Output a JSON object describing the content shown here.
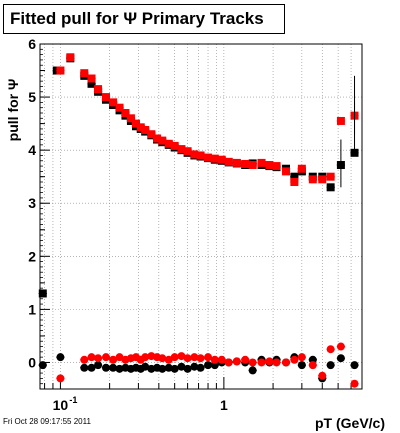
{
  "header": {
    "title": "Fitted pull for Ψ  Primary Tracks",
    "footer": "Fri Oct 28 09:17:55 2011"
  },
  "chart_data": {
    "type": "scatter",
    "title": "Fitted pull for Ψ  Primary Tracks",
    "xlabel": "pT (GeV/c)",
    "ylabel": "pull for Ψ",
    "xscale": "log",
    "xlim": [
      0.075,
      7.0
    ],
    "ylim": [
      -0.5,
      6.0
    ],
    "grid": true,
    "y_ticks": [
      0,
      1,
      2,
      3,
      4,
      5,
      6
    ],
    "x_tick_labels": [
      {
        "x": 0.1,
        "label": "10",
        "sup": "-1"
      },
      {
        "x": 1,
        "label": "1",
        "sup": ""
      }
    ],
    "colors": {
      "black_series": "#000000",
      "red_series": "#ff0000",
      "frame": "#000000",
      "grid": "#888888"
    },
    "series": [
      {
        "color": "#000000",
        "role": "width",
        "points": [
          {
            "x": 0.078,
            "y": 1.3
          },
          {
            "x": 0.095,
            "y": 5.5
          },
          {
            "x": 0.115,
            "y": 5.73
          },
          {
            "x": 0.14,
            "y": 5.4
          },
          {
            "x": 0.155,
            "y": 5.25
          },
          {
            "x": 0.17,
            "y": 5.1
          },
          {
            "x": 0.19,
            "y": 4.95
          },
          {
            "x": 0.21,
            "y": 4.85
          },
          {
            "x": 0.23,
            "y": 4.75
          },
          {
            "x": 0.25,
            "y": 4.65
          },
          {
            "x": 0.27,
            "y": 4.55
          },
          {
            "x": 0.29,
            "y": 4.45
          },
          {
            "x": 0.31,
            "y": 4.4
          },
          {
            "x": 0.33,
            "y": 4.35
          },
          {
            "x": 0.36,
            "y": 4.28
          },
          {
            "x": 0.39,
            "y": 4.2
          },
          {
            "x": 0.42,
            "y": 4.15
          },
          {
            "x": 0.46,
            "y": 4.1
          },
          {
            "x": 0.5,
            "y": 4.05
          },
          {
            "x": 0.55,
            "y": 4.0
          },
          {
            "x": 0.6,
            "y": 3.95
          },
          {
            "x": 0.66,
            "y": 3.9
          },
          {
            "x": 0.72,
            "y": 3.88
          },
          {
            "x": 0.8,
            "y": 3.85
          },
          {
            "x": 0.88,
            "y": 3.82
          },
          {
            "x": 0.97,
            "y": 3.8
          },
          {
            "x": 1.07,
            "y": 3.77
          },
          {
            "x": 1.2,
            "y": 3.75
          },
          {
            "x": 1.35,
            "y": 3.72
          },
          {
            "x": 1.5,
            "y": 3.75
          },
          {
            "x": 1.7,
            "y": 3.72
          },
          {
            "x": 1.9,
            "y": 3.7
          },
          {
            "x": 2.1,
            "y": 3.68
          },
          {
            "x": 2.4,
            "y": 3.65
          },
          {
            "x": 2.7,
            "y": 3.5
          },
          {
            "x": 3.0,
            "y": 3.6
          },
          {
            "x": 3.5,
            "y": 3.5
          },
          {
            "x": 4.0,
            "y": 3.5
          },
          {
            "x": 4.5,
            "y": 3.3
          },
          {
            "x": 5.2,
            "y": 3.72
          },
          {
            "x": 6.3,
            "y": 3.95
          }
        ]
      },
      {
        "color": "#ff0000",
        "role": "width",
        "points": [
          {
            "x": 0.1,
            "y": 5.5
          },
          {
            "x": 0.115,
            "y": 5.75
          },
          {
            "x": 0.14,
            "y": 5.45
          },
          {
            "x": 0.155,
            "y": 5.35
          },
          {
            "x": 0.17,
            "y": 5.15
          },
          {
            "x": 0.19,
            "y": 5.0
          },
          {
            "x": 0.21,
            "y": 4.9
          },
          {
            "x": 0.23,
            "y": 4.8
          },
          {
            "x": 0.25,
            "y": 4.7
          },
          {
            "x": 0.27,
            "y": 4.6
          },
          {
            "x": 0.29,
            "y": 4.5
          },
          {
            "x": 0.31,
            "y": 4.43
          },
          {
            "x": 0.33,
            "y": 4.38
          },
          {
            "x": 0.36,
            "y": 4.3
          },
          {
            "x": 0.39,
            "y": 4.22
          },
          {
            "x": 0.42,
            "y": 4.18
          },
          {
            "x": 0.46,
            "y": 4.12
          },
          {
            "x": 0.5,
            "y": 4.08
          },
          {
            "x": 0.55,
            "y": 4.02
          },
          {
            "x": 0.6,
            "y": 3.98
          },
          {
            "x": 0.66,
            "y": 3.92
          },
          {
            "x": 0.72,
            "y": 3.9
          },
          {
            "x": 0.8,
            "y": 3.86
          },
          {
            "x": 0.88,
            "y": 3.84
          },
          {
            "x": 0.97,
            "y": 3.82
          },
          {
            "x": 1.07,
            "y": 3.78
          },
          {
            "x": 1.2,
            "y": 3.76
          },
          {
            "x": 1.35,
            "y": 3.74
          },
          {
            "x": 1.5,
            "y": 3.72
          },
          {
            "x": 1.7,
            "y": 3.76
          },
          {
            "x": 1.9,
            "y": 3.72
          },
          {
            "x": 2.1,
            "y": 3.7
          },
          {
            "x": 2.4,
            "y": 3.6
          },
          {
            "x": 2.7,
            "y": 3.4
          },
          {
            "x": 3.0,
            "y": 3.65
          },
          {
            "x": 3.5,
            "y": 3.45
          },
          {
            "x": 4.0,
            "y": 3.45
          },
          {
            "x": 4.5,
            "y": 3.5
          },
          {
            "x": 5.2,
            "y": 4.55
          },
          {
            "x": 6.3,
            "y": 4.65
          }
        ]
      },
      {
        "color": "#000000",
        "role": "mean",
        "points": [
          {
            "x": 0.078,
            "y": -0.05
          },
          {
            "x": 0.1,
            "y": 0.1
          },
          {
            "x": 0.14,
            "y": -0.1
          },
          {
            "x": 0.155,
            "y": -0.1
          },
          {
            "x": 0.17,
            "y": -0.05
          },
          {
            "x": 0.19,
            "y": -0.1
          },
          {
            "x": 0.21,
            "y": -0.1
          },
          {
            "x": 0.23,
            "y": -0.12
          },
          {
            "x": 0.25,
            "y": -0.1
          },
          {
            "x": 0.27,
            "y": -0.12
          },
          {
            "x": 0.29,
            "y": -0.1
          },
          {
            "x": 0.31,
            "y": -0.12
          },
          {
            "x": 0.33,
            "y": -0.08
          },
          {
            "x": 0.36,
            "y": -0.12
          },
          {
            "x": 0.39,
            "y": -0.1
          },
          {
            "x": 0.42,
            "y": -0.12
          },
          {
            "x": 0.46,
            "y": -0.1
          },
          {
            "x": 0.5,
            "y": -0.12
          },
          {
            "x": 0.55,
            "y": -0.08
          },
          {
            "x": 0.6,
            "y": -0.12
          },
          {
            "x": 0.66,
            "y": -0.08
          },
          {
            "x": 0.72,
            "y": -0.1
          },
          {
            "x": 0.8,
            "y": -0.05
          },
          {
            "x": 0.88,
            "y": -0.05
          },
          {
            "x": 0.97,
            "y": 0.0
          },
          {
            "x": 1.07,
            "y": 0.0
          },
          {
            "x": 1.2,
            "y": 0.02
          },
          {
            "x": 1.35,
            "y": 0.0
          },
          {
            "x": 1.5,
            "y": -0.15
          },
          {
            "x": 1.7,
            "y": 0.05
          },
          {
            "x": 1.9,
            "y": 0.0
          },
          {
            "x": 2.1,
            "y": 0.05
          },
          {
            "x": 2.4,
            "y": 0.0
          },
          {
            "x": 2.7,
            "y": 0.1
          },
          {
            "x": 3.0,
            "y": -0.05
          },
          {
            "x": 3.5,
            "y": 0.05
          },
          {
            "x": 4.0,
            "y": -0.3
          },
          {
            "x": 4.5,
            "y": -0.05
          },
          {
            "x": 5.2,
            "y": 0.08
          },
          {
            "x": 6.3,
            "y": -0.05
          }
        ]
      },
      {
        "color": "#ff0000",
        "role": "mean",
        "points": [
          {
            "x": 0.1,
            "y": -0.3
          },
          {
            "x": 0.14,
            "y": 0.05
          },
          {
            "x": 0.155,
            "y": 0.1
          },
          {
            "x": 0.17,
            "y": 0.08
          },
          {
            "x": 0.19,
            "y": 0.1
          },
          {
            "x": 0.21,
            "y": 0.05
          },
          {
            "x": 0.23,
            "y": 0.1
          },
          {
            "x": 0.25,
            "y": 0.05
          },
          {
            "x": 0.27,
            "y": 0.08
          },
          {
            "x": 0.29,
            "y": 0.1
          },
          {
            "x": 0.31,
            "y": 0.05
          },
          {
            "x": 0.33,
            "y": 0.1
          },
          {
            "x": 0.36,
            "y": 0.12
          },
          {
            "x": 0.39,
            "y": 0.1
          },
          {
            "x": 0.42,
            "y": 0.08
          },
          {
            "x": 0.46,
            "y": 0.05
          },
          {
            "x": 0.5,
            "y": 0.1
          },
          {
            "x": 0.55,
            "y": 0.12
          },
          {
            "x": 0.6,
            "y": 0.08
          },
          {
            "x": 0.66,
            "y": 0.1
          },
          {
            "x": 0.72,
            "y": 0.08
          },
          {
            "x": 0.8,
            "y": 0.1
          },
          {
            "x": 0.88,
            "y": 0.05
          },
          {
            "x": 0.97,
            "y": 0.05
          },
          {
            "x": 1.07,
            "y": 0.0
          },
          {
            "x": 1.2,
            "y": 0.02
          },
          {
            "x": 1.35,
            "y": 0.05
          },
          {
            "x": 1.5,
            "y": 0.0
          },
          {
            "x": 1.7,
            "y": 0.0
          },
          {
            "x": 1.9,
            "y": 0.02
          },
          {
            "x": 2.1,
            "y": 0.0
          },
          {
            "x": 2.4,
            "y": 0.0
          },
          {
            "x": 2.7,
            "y": 0.05
          },
          {
            "x": 3.0,
            "y": 0.1
          },
          {
            "x": 3.5,
            "y": -0.05
          },
          {
            "x": 4.0,
            "y": -0.25
          },
          {
            "x": 4.5,
            "y": 0.25
          },
          {
            "x": 5.2,
            "y": 0.3
          },
          {
            "x": 6.3,
            "y": -0.4
          }
        ]
      }
    ]
  }
}
